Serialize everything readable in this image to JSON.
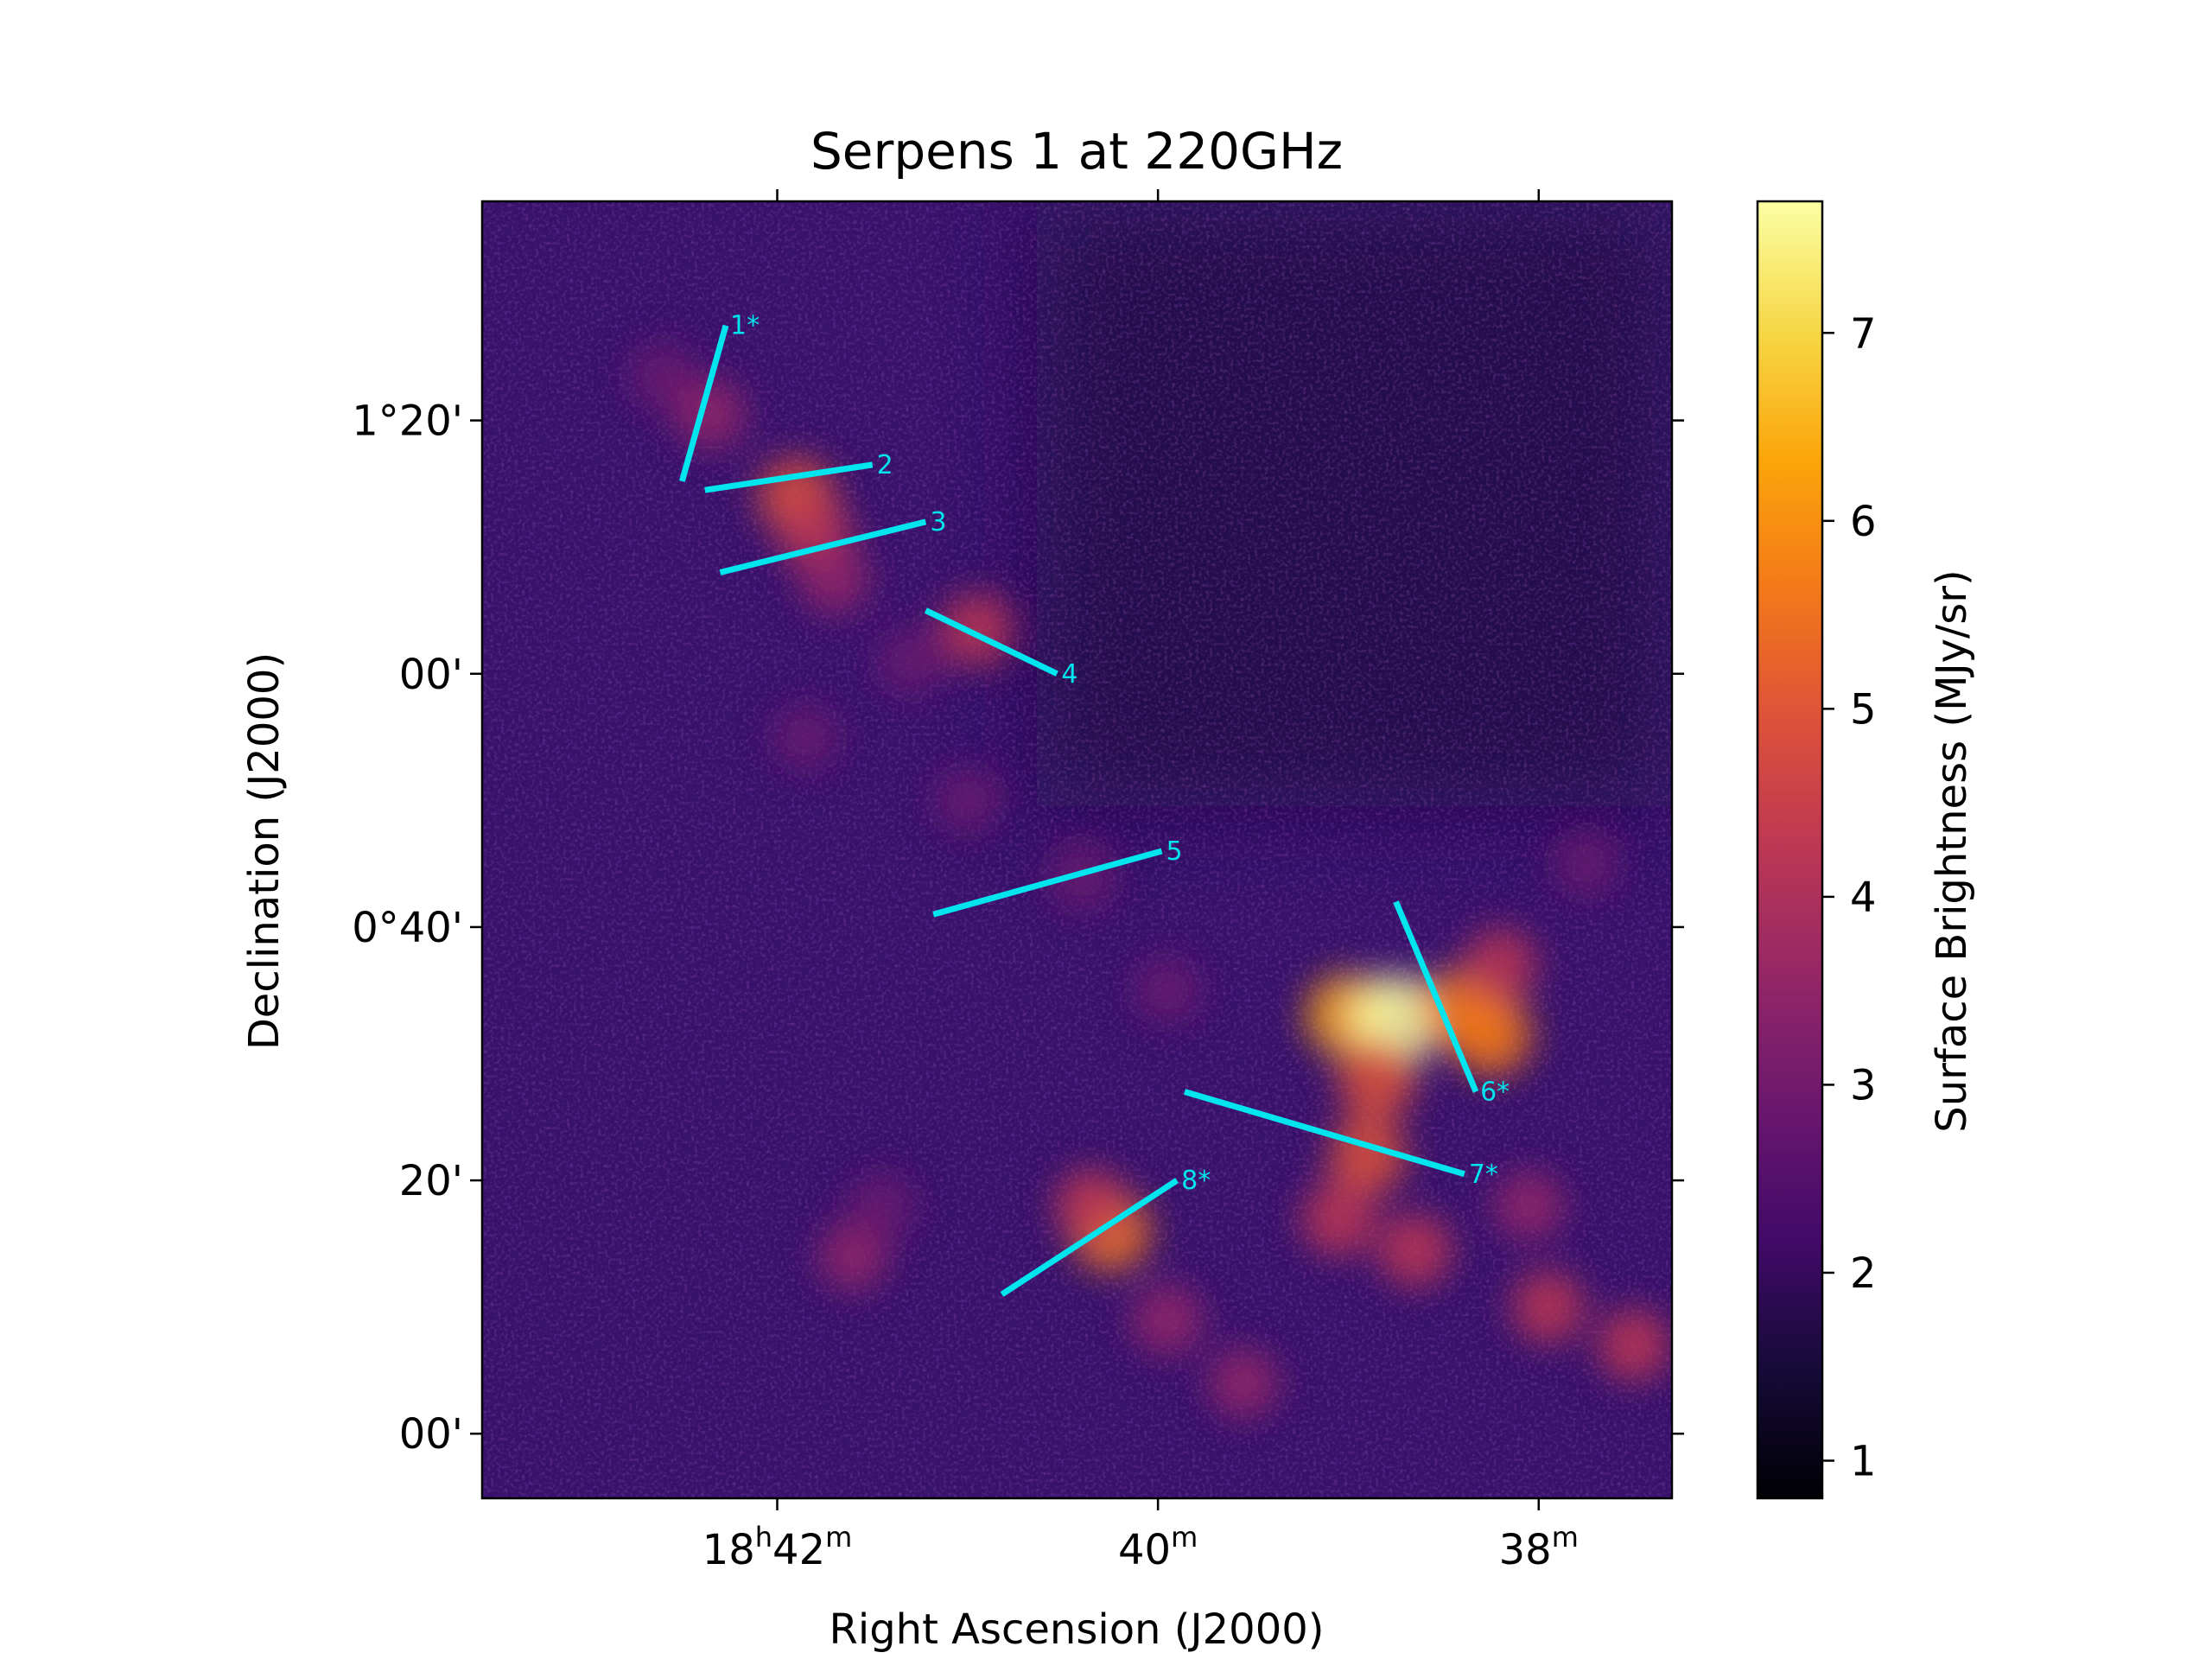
{
  "chart_data": {
    "type": "heatmap",
    "title": "Serpens 1 at 220GHz",
    "xlabel": "Right Ascension (J2000)",
    "ylabel": "Declination (J2000)",
    "colorbar_label": "Surface Brightness (MJy/sr)",
    "colormap": "inferno",
    "colorbar_range": [
      0.8,
      7.7
    ],
    "colorbar_ticks": [
      "1",
      "2",
      "3",
      "4",
      "5",
      "6",
      "7"
    ],
    "colorbar_tick_values": [
      1,
      2,
      3,
      4,
      5,
      6,
      7
    ],
    "x_ticks": [
      {
        "ra_minutes": 42,
        "label_main": "18",
        "label_sup1": "h",
        "label_mid": "42",
        "label_sup2": "m"
      },
      {
        "ra_minutes": 40,
        "label_main": "",
        "label_sup1": "",
        "label_mid": "40",
        "label_sup2": "m"
      },
      {
        "ra_minutes": 38,
        "label_main": "",
        "label_sup1": "",
        "label_mid": "38",
        "label_sup2": "m"
      }
    ],
    "x_range_ra_minutes": [
      43.55,
      37.3
    ],
    "y_ticks": [
      {
        "dec_arcmin": 80,
        "label": "1°20'"
      },
      {
        "dec_arcmin": 60,
        "label": "00'"
      },
      {
        "dec_arcmin": 40,
        "label": "0°40'"
      },
      {
        "dec_arcmin": 20,
        "label": "20'"
      },
      {
        "dec_arcmin": 0,
        "label": "00'"
      }
    ],
    "y_range_dec_arcmin": [
      -5.1,
      97.3
    ],
    "cut_color": "#00e5ee",
    "cuts": [
      {
        "label": "1*",
        "start": [
          42.5,
          75.2
        ],
        "end": [
          42.27,
          87.5
        ]
      },
      {
        "label": "2",
        "start": [
          42.38,
          74.5
        ],
        "end": [
          41.5,
          76.5
        ]
      },
      {
        "label": "3",
        "start": [
          42.3,
          68.0
        ],
        "end": [
          41.22,
          72.0
        ]
      },
      {
        "label": "4",
        "start": [
          41.22,
          65.0
        ],
        "end": [
          40.53,
          60.0
        ]
      },
      {
        "label": "5",
        "start": [
          41.18,
          41.0
        ],
        "end": [
          39.98,
          46.0
        ]
      },
      {
        "label": "6*",
        "start": [
          38.75,
          42.0
        ],
        "end": [
          38.33,
          27.0
        ]
      },
      {
        "label": "7*",
        "start": [
          39.86,
          27.0
        ],
        "end": [
          38.39,
          20.5
        ]
      },
      {
        "label": "8*",
        "start": [
          40.82,
          11.0
        ],
        "end": [
          39.9,
          20.0
        ]
      }
    ],
    "emission_features": [
      {
        "ra_minutes": 41.9,
        "dec_arcmin": 74.0,
        "brightness": 4.8
      },
      {
        "ra_minutes": 41.8,
        "dec_arcmin": 71.0,
        "brightness": 4.2
      },
      {
        "ra_minutes": 41.7,
        "dec_arcmin": 67.5,
        "brightness": 3.6
      },
      {
        "ra_minutes": 41.3,
        "dec_arcmin": 61.0,
        "brightness": 3.0
      },
      {
        "ra_minutes": 40.95,
        "dec_arcmin": 63.5,
        "brightness": 4.2
      },
      {
        "ra_minutes": 40.4,
        "dec_arcmin": 44.0,
        "brightness": 3.2
      },
      {
        "ra_minutes": 39.95,
        "dec_arcmin": 35.0,
        "brightness": 3.0
      },
      {
        "ra_minutes": 39.0,
        "dec_arcmin": 33.0,
        "brightness": 6.2
      },
      {
        "ra_minutes": 38.75,
        "dec_arcmin": 32.7,
        "brightness": 7.4
      },
      {
        "ra_minutes": 38.4,
        "dec_arcmin": 33.5,
        "brightness": 5.6
      },
      {
        "ra_minutes": 38.25,
        "dec_arcmin": 31.5,
        "brightness": 5.8
      },
      {
        "ra_minutes": 38.2,
        "dec_arcmin": 37.0,
        "brightness": 4.0
      },
      {
        "ra_minutes": 38.85,
        "dec_arcmin": 28.0,
        "brightness": 5.2
      },
      {
        "ra_minutes": 38.9,
        "dec_arcmin": 22.0,
        "brightness": 5.0
      },
      {
        "ra_minutes": 39.05,
        "dec_arcmin": 17.0,
        "brightness": 4.5
      },
      {
        "ra_minutes": 38.65,
        "dec_arcmin": 14.5,
        "brightness": 4.2
      },
      {
        "ra_minutes": 40.25,
        "dec_arcmin": 16.0,
        "brightness": 5.3
      },
      {
        "ra_minutes": 40.35,
        "dec_arcmin": 18.0,
        "brightness": 4.2
      },
      {
        "ra_minutes": 39.95,
        "dec_arcmin": 9.0,
        "brightness": 3.8
      },
      {
        "ra_minutes": 39.55,
        "dec_arcmin": 4.0,
        "brightness": 3.6
      },
      {
        "ra_minutes": 41.6,
        "dec_arcmin": 14.0,
        "brightness": 3.4
      },
      {
        "ra_minutes": 41.45,
        "dec_arcmin": 18.0,
        "brightness": 3.2
      },
      {
        "ra_minutes": 38.05,
        "dec_arcmin": 18.0,
        "brightness": 3.6
      },
      {
        "ra_minutes": 37.95,
        "dec_arcmin": 10.0,
        "brightness": 4.0
      },
      {
        "ra_minutes": 37.5,
        "dec_arcmin": 7.0,
        "brightness": 4.0
      },
      {
        "ra_minutes": 37.75,
        "dec_arcmin": 45.0,
        "brightness": 2.8
      },
      {
        "ra_minutes": 42.6,
        "dec_arcmin": 83.5,
        "brightness": 3.2
      },
      {
        "ra_minutes": 42.35,
        "dec_arcmin": 80.5,
        "brightness": 3.6
      },
      {
        "ra_minutes": 41.85,
        "dec_arcmin": 55.0,
        "brightness": 2.8
      },
      {
        "ra_minutes": 41.0,
        "dec_arcmin": 50.0,
        "brightness": 2.8
      }
    ]
  }
}
